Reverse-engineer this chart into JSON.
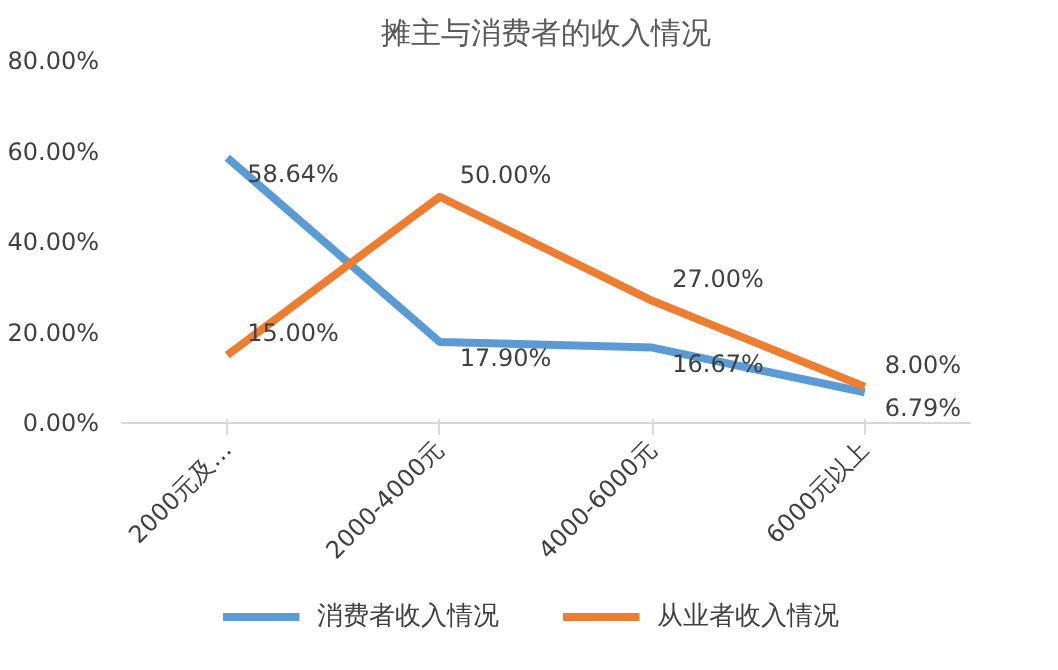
{
  "chart_data": {
    "type": "line",
    "title": "摊主与消费者的收入情况",
    "categories": [
      "2000元及…",
      "2000-4000元",
      "4000-6000元",
      "6000元以上"
    ],
    "series": [
      {
        "name": "消费者收入情况",
        "color": "#5b9bd5",
        "values": [
          58.64,
          17.9,
          16.67,
          6.79
        ],
        "value_labels": [
          "58.64%",
          "17.90%",
          "16.67%",
          "6.79%"
        ]
      },
      {
        "name": "从业者收入情况",
        "color": "#ed7d31",
        "values": [
          15.0,
          50.0,
          27.0,
          8.0
        ],
        "value_labels": [
          "15.00%",
          "50.00%",
          "27.00%",
          "8.00%"
        ]
      }
    ],
    "ylim": [
      0,
      80
    ],
    "yticks": [
      {
        "value": 0,
        "label": "0.00%"
      },
      {
        "value": 20,
        "label": "20.00%"
      },
      {
        "value": 40,
        "label": "40.00%"
      },
      {
        "value": 60,
        "label": "60.00%"
      },
      {
        "value": 80,
        "label": "80.00%"
      }
    ],
    "grid": false,
    "legend": "bottom",
    "marker": "none",
    "line_style": "solid"
  }
}
